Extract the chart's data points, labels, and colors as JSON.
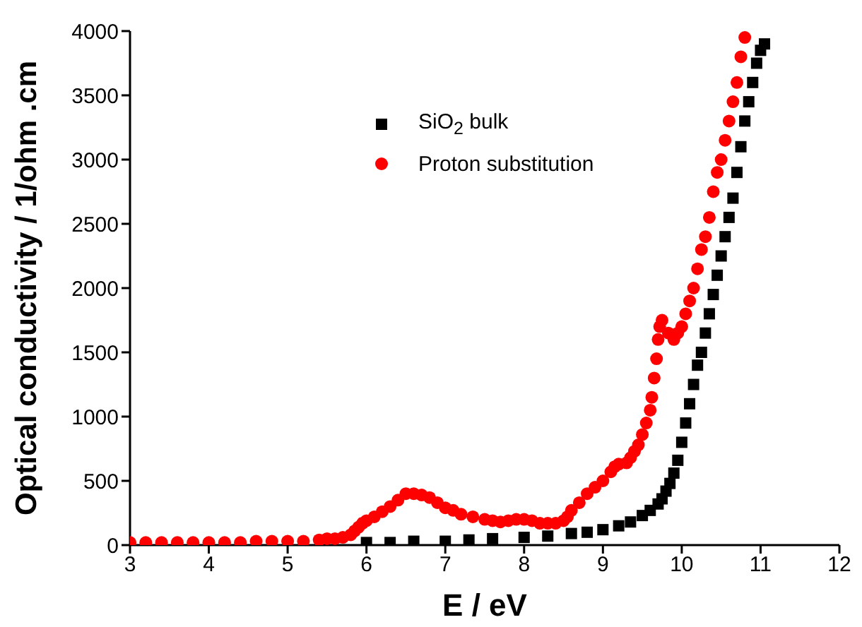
{
  "chart_data": {
    "type": "scatter",
    "xlabel": "E / eV",
    "ylabel": "Optical conductivity / 1/ohm .cm",
    "xlim": [
      3,
      12
    ],
    "xticks": [
      3,
      4,
      5,
      6,
      7,
      8,
      9,
      10,
      11,
      12
    ],
    "ylim": [
      0,
      4000
    ],
    "yticks": [
      0,
      500,
      1000,
      1500,
      2000,
      2500,
      3000,
      3500,
      4000
    ],
    "grid": false,
    "legend": "top",
    "series": [
      {
        "name": "SiO$_{2}$ bulk",
        "color": "#000000",
        "marker": "square",
        "x": [
          6.0,
          6.3,
          6.6,
          7.0,
          7.3,
          7.6,
          8.0,
          8.3,
          8.6,
          8.8,
          9.0,
          9.2,
          9.35,
          9.5,
          9.6,
          9.7,
          9.75,
          9.8,
          9.85,
          9.9,
          9.95,
          10.0,
          10.05,
          10.1,
          10.15,
          10.2,
          10.25,
          10.3,
          10.35,
          10.4,
          10.45,
          10.5,
          10.55,
          10.6,
          10.65,
          10.7,
          10.75,
          10.8,
          10.85,
          10.9,
          10.95,
          11.0,
          11.05
        ],
        "values": [
          20,
          20,
          30,
          30,
          40,
          50,
          60,
          70,
          90,
          100,
          120,
          150,
          180,
          230,
          270,
          320,
          360,
          420,
          480,
          560,
          660,
          800,
          950,
          1100,
          1250,
          1400,
          1500,
          1650,
          1800,
          1950,
          2100,
          2250,
          2400,
          2550,
          2700,
          2900,
          3100,
          3300,
          3450,
          3600,
          3750,
          3850,
          3900
        ]
      },
      {
        "name": "Proton substitution",
        "color": "#ff0000",
        "marker": "circle",
        "x": [
          3.0,
          3.2,
          3.4,
          3.6,
          3.8,
          4.0,
          4.2,
          4.4,
          4.6,
          4.8,
          5.0,
          5.2,
          5.4,
          5.5,
          5.6,
          5.7,
          5.8,
          5.85,
          5.9,
          5.95,
          6.0,
          6.1,
          6.2,
          6.3,
          6.4,
          6.5,
          6.6,
          6.7,
          6.8,
          6.9,
          7.0,
          7.1,
          7.2,
          7.35,
          7.5,
          7.6,
          7.7,
          7.8,
          7.9,
          8.0,
          8.1,
          8.2,
          8.3,
          8.4,
          8.5,
          8.55,
          8.6,
          8.7,
          8.8,
          8.9,
          9.0,
          9.1,
          9.15,
          9.2,
          9.3,
          9.35,
          9.4,
          9.45,
          9.5,
          9.55,
          9.6,
          9.62,
          9.65,
          9.68,
          9.7,
          9.72,
          9.75,
          9.83,
          9.9,
          9.95,
          10.0,
          10.05,
          10.1,
          10.15,
          10.2,
          10.25,
          10.3,
          10.35,
          10.4,
          10.45,
          10.5,
          10.55,
          10.6,
          10.65,
          10.7,
          10.75,
          10.8
        ],
        "values": [
          20,
          20,
          20,
          20,
          20,
          20,
          20,
          20,
          30,
          30,
          30,
          30,
          40,
          50,
          50,
          60,
          80,
          110,
          140,
          170,
          190,
          220,
          260,
          300,
          350,
          400,
          400,
          390,
          370,
          330,
          290,
          270,
          240,
          220,
          200,
          190,
          180,
          190,
          200,
          200,
          190,
          170,
          170,
          170,
          190,
          220,
          270,
          330,
          400,
          450,
          500,
          570,
          610,
          630,
          640,
          680,
          730,
          780,
          860,
          950,
          1050,
          1150,
          1300,
          1450,
          1600,
          1700,
          1750,
          1650,
          1600,
          1650,
          1700,
          1800,
          1900,
          2000,
          2150,
          2300,
          2400,
          2550,
          2750,
          2900,
          3000,
          3150,
          3300,
          3450,
          3600,
          3800,
          3950
        ]
      }
    ]
  }
}
